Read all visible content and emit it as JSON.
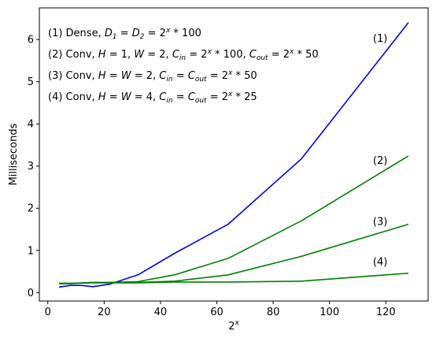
{
  "chart_data": {
    "type": "line",
    "xlabel": "2^x",
    "ylabel": "Milliseconds",
    "xlim": [
      -3,
      135
    ],
    "ylim": [
      -0.2,
      6.75
    ],
    "xticks": [
      0,
      20,
      40,
      60,
      80,
      100,
      120
    ],
    "yticks": [
      0,
      1,
      2,
      3,
      4,
      5,
      6
    ],
    "grid": false,
    "legend_lines": [
      "(1) Dense, D_1 = D_2 = 2^x * 100",
      "(2) Conv, H = 1, W = 2, C_in = 2^x * 100, C_out = 2^x * 50",
      "(3) Conv, H = W = 2, C_in = C_out = 2^x * 50",
      "(4) Conv, H = W = 4, C_in = C_out = 2^x * 25"
    ],
    "series": [
      {
        "name": "(1)",
        "color": "#0000ff",
        "x": [
          4,
          8,
          12,
          16,
          22,
          32,
          45,
          64,
          90,
          128
        ],
        "y": [
          0.13,
          0.17,
          0.17,
          0.14,
          0.2,
          0.42,
          0.93,
          1.62,
          3.17,
          6.4
        ]
      },
      {
        "name": "(2)",
        "color": "#008000",
        "x": [
          4,
          8,
          16,
          22,
          32,
          45,
          64,
          90,
          128
        ],
        "y": [
          0.22,
          0.22,
          0.24,
          0.24,
          0.26,
          0.42,
          0.81,
          1.7,
          3.24
        ]
      },
      {
        "name": "(3)",
        "color": "#008000",
        "x": [
          4,
          8,
          16,
          22,
          32,
          45,
          64,
          90,
          128
        ],
        "y": [
          0.21,
          0.21,
          0.24,
          0.24,
          0.24,
          0.27,
          0.42,
          0.86,
          1.62
        ]
      },
      {
        "name": "(4)",
        "color": "#008000",
        "x": [
          4,
          8,
          16,
          22,
          32,
          45,
          64,
          90,
          128
        ],
        "y": [
          0.22,
          0.22,
          0.23,
          0.23,
          0.23,
          0.25,
          0.25,
          0.27,
          0.46
        ]
      }
    ],
    "series_tags": [
      {
        "text": "(1)",
        "x": 118,
        "y": 5.95
      },
      {
        "text": "(2)",
        "x": 118,
        "y": 3.05
      },
      {
        "text": "(3)",
        "x": 118,
        "y": 1.6
      },
      {
        "text": "(4)",
        "x": 118,
        "y": 0.65
      }
    ]
  }
}
